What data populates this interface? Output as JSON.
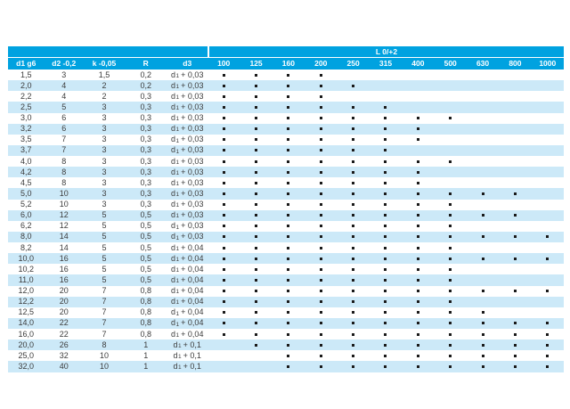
{
  "table": {
    "band_label": "L 0/+2",
    "spec_headers": [
      "d1 g6",
      "d2 -0,2",
      "k -0,05",
      "R",
      "d3"
    ],
    "length_headers": [
      "100",
      "125",
      "160",
      "200",
      "250",
      "315",
      "400",
      "500",
      "630",
      "800",
      "1000"
    ],
    "d3_base": "d",
    "d3_sub": "1",
    "colors": {
      "header_bg": "#00a2e0",
      "header_text": "#ffffff",
      "row_alt_bg": "#cce9f8",
      "row_bg": "#ffffff",
      "body_text": "#3c3c3c",
      "dot": "#1a1a1a"
    },
    "rows": [
      {
        "d1": "1,5",
        "d2": "3",
        "k": "1,5",
        "R": "0,2",
        "d3_tail": "+ 0,03",
        "dots": [
          1,
          1,
          1,
          1,
          0,
          0,
          0,
          0,
          0,
          0,
          0
        ]
      },
      {
        "d1": "2,0",
        "d2": "4",
        "k": "2",
        "R": "0,2",
        "d3_tail": "+ 0,03",
        "dots": [
          1,
          1,
          1,
          1,
          1,
          0,
          0,
          0,
          0,
          0,
          0
        ]
      },
      {
        "d1": "2,2",
        "d2": "4",
        "k": "2",
        "R": "0,3",
        "d3_tail": "+ 0,03",
        "dots": [
          1,
          1,
          1,
          1,
          0,
          0,
          0,
          0,
          0,
          0,
          0
        ]
      },
      {
        "d1": "2,5",
        "d2": "5",
        "k": "3",
        "R": "0,3",
        "d3_tail": "+ 0,03",
        "dots": [
          1,
          1,
          1,
          1,
          1,
          1,
          0,
          0,
          0,
          0,
          0
        ]
      },
      {
        "d1": "3,0",
        "d2": "6",
        "k": "3",
        "R": "0,3",
        "d3_tail": "+ 0,03",
        "dots": [
          1,
          1,
          1,
          1,
          1,
          1,
          1,
          1,
          0,
          0,
          0
        ]
      },
      {
        "d1": "3,2",
        "d2": "6",
        "k": "3",
        "R": "0,3",
        "d3_tail": "+ 0,03",
        "dots": [
          1,
          1,
          1,
          1,
          1,
          1,
          1,
          0,
          0,
          0,
          0
        ]
      },
      {
        "d1": "3,5",
        "d2": "7",
        "k": "3",
        "R": "0,3",
        "d3_tail": "+ 0,03",
        "dots": [
          1,
          1,
          1,
          1,
          1,
          1,
          1,
          0,
          0,
          0,
          0
        ]
      },
      {
        "d1": "3,7",
        "d2": "7",
        "k": "3",
        "R": "0,3",
        "d3_tail": "+ 0,03",
        "dots": [
          1,
          1,
          1,
          1,
          1,
          1,
          0,
          0,
          0,
          0,
          0
        ]
      },
      {
        "d1": "4,0",
        "d2": "8",
        "k": "3",
        "R": "0,3",
        "d3_tail": "+ 0,03",
        "dots": [
          1,
          1,
          1,
          1,
          1,
          1,
          1,
          1,
          0,
          0,
          0
        ]
      },
      {
        "d1": "4,2",
        "d2": "8",
        "k": "3",
        "R": "0,3",
        "d3_tail": "+ 0,03",
        "dots": [
          1,
          1,
          1,
          1,
          1,
          1,
          1,
          0,
          0,
          0,
          0
        ]
      },
      {
        "d1": "4,5",
        "d2": "8",
        "k": "3",
        "R": "0,3",
        "d3_tail": "+ 0,03",
        "dots": [
          1,
          1,
          1,
          1,
          1,
          1,
          1,
          0,
          0,
          0,
          0
        ]
      },
      {
        "d1": "5,0",
        "d2": "10",
        "k": "3",
        "R": "0,3",
        "d3_tail": "+ 0,03",
        "dots": [
          1,
          1,
          1,
          1,
          1,
          1,
          1,
          1,
          1,
          1,
          0
        ]
      },
      {
        "d1": "5,2",
        "d2": "10",
        "k": "3",
        "R": "0,3",
        "d3_tail": "+ 0,03",
        "dots": [
          1,
          1,
          1,
          1,
          1,
          1,
          1,
          1,
          0,
          0,
          0
        ]
      },
      {
        "d1": "6,0",
        "d2": "12",
        "k": "5",
        "R": "0,5",
        "d3_tail": "+ 0,03",
        "dots": [
          1,
          1,
          1,
          1,
          1,
          1,
          1,
          1,
          1,
          1,
          0
        ]
      },
      {
        "d1": "6,2",
        "d2": "12",
        "k": "5",
        "R": "0,5",
        "d3_tail": "+ 0,03",
        "dots": [
          1,
          1,
          1,
          1,
          1,
          1,
          1,
          1,
          0,
          0,
          0
        ]
      },
      {
        "d1": "8,0",
        "d2": "14",
        "k": "5",
        "R": "0,5",
        "d3_tail": "+ 0,03",
        "dots": [
          1,
          1,
          1,
          1,
          1,
          1,
          1,
          1,
          1,
          1,
          1
        ]
      },
      {
        "d1": "8,2",
        "d2": "14",
        "k": "5",
        "R": "0,5",
        "d3_tail": "+ 0,04",
        "dots": [
          1,
          1,
          1,
          1,
          1,
          1,
          1,
          1,
          0,
          0,
          0
        ]
      },
      {
        "d1": "10,0",
        "d2": "16",
        "k": "5",
        "R": "0,5",
        "d3_tail": "+ 0,04",
        "dots": [
          1,
          1,
          1,
          1,
          1,
          1,
          1,
          1,
          1,
          1,
          1
        ]
      },
      {
        "d1": "10,2",
        "d2": "16",
        "k": "5",
        "R": "0,5",
        "d3_tail": "+ 0,04",
        "dots": [
          1,
          1,
          1,
          1,
          1,
          1,
          1,
          1,
          0,
          0,
          0
        ]
      },
      {
        "d1": "11,0",
        "d2": "16",
        "k": "5",
        "R": "0,5",
        "d3_tail": "+ 0,04",
        "dots": [
          1,
          1,
          1,
          1,
          1,
          1,
          1,
          1,
          0,
          0,
          0
        ]
      },
      {
        "d1": "12,0",
        "d2": "20",
        "k": "7",
        "R": "0,8",
        "d3_tail": "+ 0,04",
        "dots": [
          1,
          1,
          1,
          1,
          1,
          1,
          1,
          1,
          1,
          1,
          1
        ]
      },
      {
        "d1": "12,2",
        "d2": "20",
        "k": "7",
        "R": "0,8",
        "d3_tail": "+ 0,04",
        "dots": [
          1,
          1,
          1,
          1,
          1,
          1,
          1,
          1,
          0,
          0,
          0
        ]
      },
      {
        "d1": "12,5",
        "d2": "20",
        "k": "7",
        "R": "0,8",
        "d3_tail": "+ 0,04",
        "dots": [
          1,
          1,
          1,
          1,
          1,
          1,
          1,
          1,
          1,
          0,
          0
        ]
      },
      {
        "d1": "14,0",
        "d2": "22",
        "k": "7",
        "R": "0,8",
        "d3_tail": "+ 0,04",
        "dots": [
          1,
          1,
          1,
          1,
          1,
          1,
          1,
          1,
          1,
          1,
          1
        ]
      },
      {
        "d1": "16,0",
        "d2": "22",
        "k": "7",
        "R": "0,8",
        "d3_tail": "+ 0,04",
        "dots": [
          1,
          1,
          1,
          1,
          1,
          1,
          1,
          1,
          1,
          1,
          1
        ]
      },
      {
        "d1": "20,0",
        "d2": "26",
        "k": "8",
        "R": "1",
        "d3_tail": "+ 0,1",
        "dots": [
          0,
          1,
          1,
          1,
          1,
          1,
          1,
          1,
          1,
          1,
          1
        ]
      },
      {
        "d1": "25,0",
        "d2": "32",
        "k": "10",
        "R": "1",
        "d3_tail": "+ 0,1",
        "dots": [
          0,
          0,
          1,
          1,
          1,
          1,
          1,
          1,
          1,
          1,
          1
        ]
      },
      {
        "d1": "32,0",
        "d2": "40",
        "k": "10",
        "R": "1",
        "d3_tail": "+ 0,1",
        "dots": [
          0,
          0,
          1,
          1,
          1,
          1,
          1,
          1,
          1,
          1,
          1
        ]
      }
    ]
  }
}
